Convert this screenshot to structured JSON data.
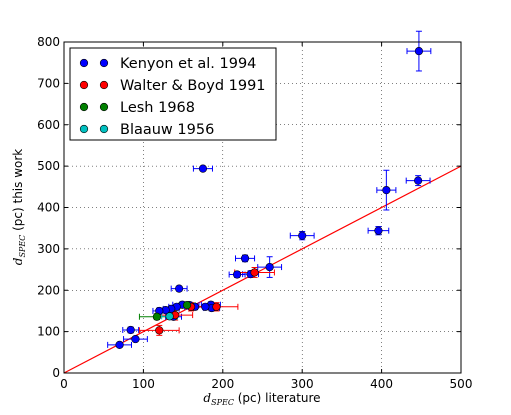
{
  "chart_data": {
    "type": "scatter",
    "xlabel": {
      "sym": "d",
      "sub": "SPEC",
      "text": " (pc) literature"
    },
    "ylabel": {
      "sym": "d",
      "sub": "SPEC",
      "text": " (pc) this work"
    },
    "xlim": [
      0,
      500
    ],
    "ylim": [
      0,
      800
    ],
    "xticks": [
      0,
      100,
      200,
      300,
      400,
      500
    ],
    "yticks": [
      0,
      100,
      200,
      300,
      400,
      500,
      600,
      700,
      800
    ],
    "grid": true,
    "legend_position": "top-left",
    "reference_line": {
      "x": [
        0,
        500
      ],
      "y": [
        0,
        500
      ],
      "color": "#ff0000"
    },
    "series": [
      {
        "name": "Kenyon et al. 1994",
        "color": "#0000ff",
        "points": [
          {
            "x": 447,
            "y": 778,
            "xerr": 15,
            "yerr": 48
          },
          {
            "x": 446,
            "y": 465,
            "xerr": 15,
            "yerr": 12
          },
          {
            "x": 406,
            "y": 442,
            "xerr": 12,
            "yerr": 48
          },
          {
            "x": 396,
            "y": 344,
            "xerr": 13,
            "yerr": 10
          },
          {
            "x": 300,
            "y": 332,
            "xerr": 15,
            "yerr": 10
          },
          {
            "x": 259,
            "y": 256,
            "xerr": 15,
            "yerr": 25
          },
          {
            "x": 235,
            "y": 239,
            "xerr": 10,
            "yerr": 8
          },
          {
            "x": 228,
            "y": 277,
            "xerr": 12,
            "yerr": 8
          },
          {
            "x": 218,
            "y": 238,
            "xerr": 10,
            "yerr": 7
          },
          {
            "x": 175,
            "y": 494,
            "xerr": 12,
            "yerr": 4
          },
          {
            "x": 185,
            "y": 165,
            "xerr": 12,
            "yerr": 7
          },
          {
            "x": 186,
            "y": 157,
            "xerr": 10,
            "yerr": 7
          },
          {
            "x": 178,
            "y": 160,
            "xerr": 10,
            "yerr": 7
          },
          {
            "x": 165,
            "y": 160,
            "xerr": 10,
            "yerr": 7
          },
          {
            "x": 158,
            "y": 164,
            "xerr": 12,
            "yerr": 7
          },
          {
            "x": 149,
            "y": 165,
            "xerr": 12,
            "yerr": 7
          },
          {
            "x": 145,
            "y": 204,
            "xerr": 10,
            "yerr": 6
          },
          {
            "x": 142,
            "y": 160,
            "xerr": 10,
            "yerr": 7
          },
          {
            "x": 135,
            "y": 155,
            "xerr": 10,
            "yerr": 7
          },
          {
            "x": 128,
            "y": 152,
            "xerr": 10,
            "yerr": 7
          },
          {
            "x": 120,
            "y": 150,
            "xerr": 8,
            "yerr": 7
          },
          {
            "x": 138,
            "y": 136,
            "xerr": 10,
            "yerr": 7
          },
          {
            "x": 84,
            "y": 104,
            "xerr": 10,
            "yerr": 7
          },
          {
            "x": 90,
            "y": 82,
            "xerr": 15,
            "yerr": 5
          },
          {
            "x": 70,
            "y": 68,
            "xerr": 15,
            "yerr": 5
          }
        ]
      },
      {
        "name": "Walter & Boyd 1991",
        "color": "#ff0000",
        "points": [
          {
            "x": 240,
            "y": 243,
            "xerr": 25,
            "yerr": 12
          },
          {
            "x": 192,
            "y": 160,
            "xerr": 27,
            "yerr": 10
          },
          {
            "x": 160,
            "y": 160,
            "xerr": 20,
            "yerr": 10
          },
          {
            "x": 140,
            "y": 140,
            "xerr": 22,
            "yerr": 12
          },
          {
            "x": 120,
            "y": 103,
            "xerr": 25,
            "yerr": 12
          }
        ]
      },
      {
        "name": "Lesh 1968",
        "color": "#008000",
        "points": [
          {
            "x": 155,
            "y": 164,
            "xerr": 10,
            "yerr": 5
          },
          {
            "x": 117,
            "y": 136,
            "xerr": 22,
            "yerr": 7
          }
        ]
      },
      {
        "name": "Blaauw 1956",
        "color": "#00bfbf",
        "points": [
          {
            "x": 133,
            "y": 137,
            "xerr": 10,
            "yerr": 5
          }
        ]
      }
    ]
  }
}
